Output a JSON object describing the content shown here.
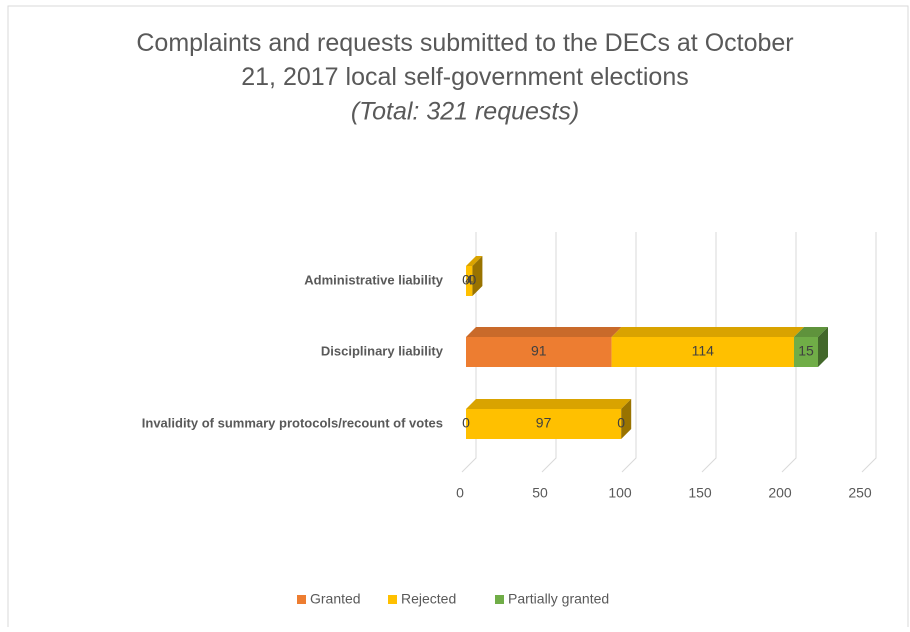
{
  "chart_data": {
    "type": "bar3d_stacked_horizontal",
    "title": "Complaints and requests submitted to the DECs at October 21, 2017 local self-government elections",
    "subtitle": "(Total: 321 requests)",
    "categories": [
      "Administrative liability",
      "Disciplinary liability",
      "Invalidity of summary protocols/recount of votes"
    ],
    "series": [
      {
        "name": "Granted",
        "color": "#ed7d31",
        "values": [
          0,
          91,
          0
        ]
      },
      {
        "name": "Rejected",
        "color": "#ffc000",
        "values": [
          4,
          114,
          97
        ]
      },
      {
        "name": "Partially granted",
        "color": "#70ad47",
        "values": [
          0,
          15,
          0
        ]
      }
    ],
    "xlim": [
      0,
      250
    ],
    "xticks": [
      0,
      50,
      100,
      150,
      200,
      250
    ],
    "grid": true,
    "legend": "bottom"
  }
}
